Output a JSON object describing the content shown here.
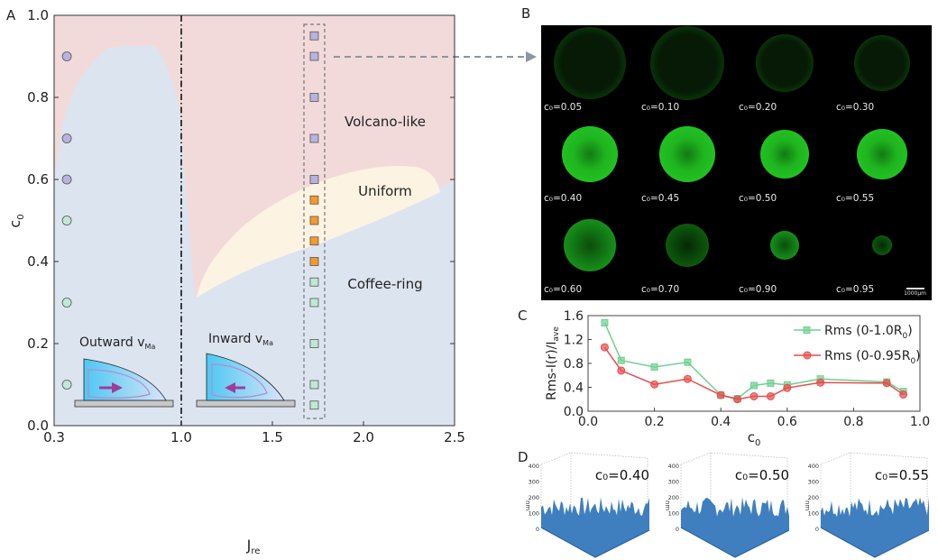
{
  "panel_labels": {
    "a": "A",
    "b": "B",
    "c": "C",
    "d": "D"
  },
  "colors": {
    "volcano_region": "#f2dada",
    "coffee_region": "#dce4f0",
    "uniform_region": "#fdf3e2",
    "purple_marker": "#b8b2dc",
    "green_marker": "#bfe8d6",
    "orange_marker": "#f39a2c",
    "rms_full": "#6fd08f",
    "rms_095": "#ea4b4b",
    "fluorescence": "#22dd22",
    "surface": "#3f7fbf"
  },
  "chart_data": [
    {
      "panel": "A",
      "type": "scatter",
      "xlabel": "J",
      "xlabel_sub": "re",
      "ylabel": "c",
      "ylabel_sub": "0",
      "xlim": [
        0.3,
        2.5
      ],
      "ylim": [
        0.0,
        1.0
      ],
      "x_ticks": [
        "0.3",
        "1.0",
        "1.5",
        "2.0",
        "2.5"
      ],
      "y_ticks": [
        "0.0",
        "0.2",
        "0.4",
        "0.6",
        "0.8",
        "1.0"
      ],
      "x_scale": "compressed between 0.3 and 1.0",
      "vertical_line": {
        "x": 1.0,
        "style": "dash-dot"
      },
      "regions": [
        {
          "name": "Volcano-like",
          "color": "#f2dada"
        },
        {
          "name": "Uniform",
          "color": "#fdf3e2"
        },
        {
          "name": "Coffee-ring",
          "color": "#dce4f0"
        }
      ],
      "annotations": [
        {
          "text": "Outward v",
          "sub": "Ma"
        },
        {
          "text": "Inward v",
          "sub": "Ma"
        }
      ],
      "series": [
        {
          "marker": "circle",
          "x": 0.37,
          "points": [
            {
              "y": 0.9,
              "class": "volcano"
            },
            {
              "y": 0.7,
              "class": "volcano"
            },
            {
              "y": 0.6,
              "class": "volcano"
            },
            {
              "y": 0.5,
              "class": "coffee"
            },
            {
              "y": 0.3,
              "class": "coffee"
            },
            {
              "y": 0.1,
              "class": "coffee"
            }
          ]
        },
        {
          "marker": "square",
          "x": 1.73,
          "points": [
            {
              "y": 0.95,
              "class": "volcano"
            },
            {
              "y": 0.9,
              "class": "volcano"
            },
            {
              "y": 0.8,
              "class": "volcano"
            },
            {
              "y": 0.7,
              "class": "volcano"
            },
            {
              "y": 0.6,
              "class": "volcano"
            },
            {
              "y": 0.55,
              "class": "uniform"
            },
            {
              "y": 0.5,
              "class": "uniform"
            },
            {
              "y": 0.45,
              "class": "uniform"
            },
            {
              "y": 0.4,
              "class": "uniform"
            },
            {
              "y": 0.35,
              "class": "coffee"
            },
            {
              "y": 0.3,
              "class": "coffee"
            },
            {
              "y": 0.2,
              "class": "coffee"
            },
            {
              "y": 0.1,
              "class": "coffee"
            },
            {
              "y": 0.05,
              "class": "coffee"
            }
          ]
        }
      ]
    },
    {
      "panel": "C",
      "type": "line",
      "xlabel": "c",
      "xlabel_sub": "0",
      "ylabel": "Rms-I(r)/I",
      "ylabel_sub": "ave",
      "xlim": [
        0.0,
        1.0
      ],
      "ylim": [
        0.0,
        1.6
      ],
      "x_ticks": [
        "0.0",
        "0.2",
        "0.4",
        "0.6",
        "0.8",
        "1.0"
      ],
      "y_ticks": [
        "0.0",
        "0.4",
        "0.8",
        "1.2",
        "1.6"
      ],
      "legend_position": "top-right",
      "x": [
        0.05,
        0.1,
        0.2,
        0.3,
        0.4,
        0.45,
        0.5,
        0.55,
        0.6,
        0.7,
        0.9,
        0.95
      ],
      "series": [
        {
          "name": "Rms (0-1.0R",
          "name_sub": "0",
          "name_end": ")",
          "marker": "square",
          "color": "#6fd08f",
          "values": [
            1.48,
            0.85,
            0.74,
            0.82,
            0.27,
            0.21,
            0.43,
            0.47,
            0.44,
            0.54,
            0.49,
            0.33
          ]
        },
        {
          "name": "Rms (0-0.95R",
          "name_sub": "0",
          "name_end": ")",
          "marker": "circle",
          "color": "#ea4b4b",
          "values": [
            1.07,
            0.68,
            0.45,
            0.54,
            0.27,
            0.2,
            0.25,
            0.25,
            0.39,
            0.48,
            0.47,
            0.28
          ]
        }
      ]
    }
  ],
  "panel_b": {
    "images": [
      {
        "label": "c₀=0.05",
        "size": 0.84,
        "style": "ring"
      },
      {
        "label": "c₀=0.10",
        "size": 0.86,
        "style": "ring"
      },
      {
        "label": "c₀=0.20",
        "size": 0.66,
        "style": "ring"
      },
      {
        "label": "c₀=0.30",
        "size": 0.64,
        "style": "ring"
      },
      {
        "label": "c₀=0.40",
        "size": 0.64,
        "style": "filled"
      },
      {
        "label": "c₀=0.45",
        "size": 0.64,
        "style": "filled"
      },
      {
        "label": "c₀=0.50",
        "size": 0.56,
        "style": "filled"
      },
      {
        "label": "c₀=0.55",
        "size": 0.58,
        "style": "filled"
      },
      {
        "label": "c₀=0.60",
        "size": 0.6,
        "style": "mid"
      },
      {
        "label": "c₀=0.70",
        "size": 0.5,
        "style": "dim"
      },
      {
        "label": "c₀=0.90",
        "size": 0.34,
        "style": "mid"
      },
      {
        "label": "c₀=0.95",
        "size": 0.23,
        "style": "dim"
      }
    ],
    "scale_bar": "1000μm"
  },
  "panel_d": {
    "z_ticks": [
      "0",
      "100",
      "200",
      "300",
      "400"
    ],
    "z_unit": "nm",
    "plots": [
      {
        "label": "c₀=0.40"
      },
      {
        "label": "c₀=0.50"
      },
      {
        "label": "c₀=0.55"
      }
    ]
  }
}
